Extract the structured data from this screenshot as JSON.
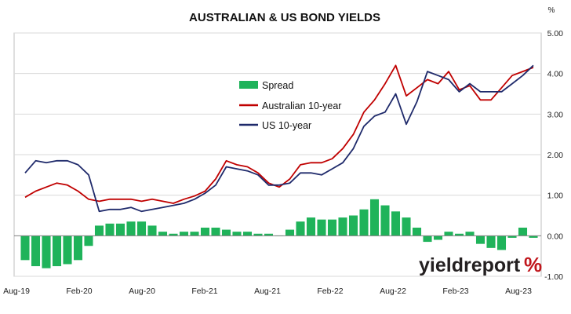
{
  "chart_data": {
    "type": "line",
    "title": "AUSTRALIAN & US BOND YIELDS",
    "y_unit_label": "%",
    "ylim": [
      -1.0,
      5.0
    ],
    "y_ticks": [
      "5.00",
      "4.00",
      "3.00",
      "2.00",
      "1.00",
      "0.00",
      "-1.00"
    ],
    "x_tick_labels": [
      "Aug-19",
      "Feb-20",
      "Aug-20",
      "Feb-21",
      "Aug-21",
      "Feb-22",
      "Aug-22",
      "Feb-23",
      "Aug-23"
    ],
    "x_dates": [
      "2019-08",
      "2019-09",
      "2019-10",
      "2019-11",
      "2019-12",
      "2020-01",
      "2020-02",
      "2020-03",
      "2020-04",
      "2020-05",
      "2020-06",
      "2020-07",
      "2020-08",
      "2020-09",
      "2020-10",
      "2020-11",
      "2020-12",
      "2021-01",
      "2021-02",
      "2021-03",
      "2021-04",
      "2021-05",
      "2021-06",
      "2021-07",
      "2021-08",
      "2021-09",
      "2021-10",
      "2021-11",
      "2021-12",
      "2022-01",
      "2022-02",
      "2022-03",
      "2022-04",
      "2022-05",
      "2022-06",
      "2022-07",
      "2022-08",
      "2022-09",
      "2022-10",
      "2022-11",
      "2022-12",
      "2023-01",
      "2023-02",
      "2023-03",
      "2023-04",
      "2023-05",
      "2023-06",
      "2023-07",
      "2023-08"
    ],
    "series": [
      {
        "name": "Spread",
        "type": "bar",
        "color": "#1fb35a",
        "values": [
          -0.6,
          -0.75,
          -0.8,
          -0.75,
          -0.7,
          -0.6,
          -0.25,
          0.25,
          0.3,
          0.3,
          0.35,
          0.35,
          0.25,
          0.1,
          0.05,
          0.1,
          0.1,
          0.2,
          0.2,
          0.15,
          0.1,
          0.1,
          0.05,
          0.05,
          0.0,
          0.15,
          0.35,
          0.45,
          0.4,
          0.4,
          0.45,
          0.5,
          0.65,
          0.9,
          0.75,
          0.6,
          0.45,
          0.2,
          -0.15,
          -0.1,
          0.1,
          0.05,
          0.1,
          -0.2,
          -0.3,
          -0.35,
          -0.05,
          0.2,
          -0.05
        ]
      },
      {
        "name": "Australian 10-year",
        "type": "line",
        "color": "#c00000",
        "values": [
          0.95,
          1.1,
          1.2,
          1.3,
          1.25,
          1.1,
          0.9,
          0.85,
          0.9,
          0.9,
          0.9,
          0.85,
          0.9,
          0.85,
          0.8,
          0.9,
          0.98,
          1.1,
          1.4,
          1.85,
          1.75,
          1.7,
          1.55,
          1.3,
          1.2,
          1.4,
          1.75,
          1.8,
          1.8,
          1.9,
          2.15,
          2.5,
          3.05,
          3.35,
          3.75,
          4.2,
          3.45,
          3.65,
          3.85,
          3.75,
          4.05,
          3.6,
          3.7,
          3.35,
          3.35,
          3.65,
          3.95,
          4.05,
          4.15
        ]
      },
      {
        "name": "US 10-year",
        "type": "line",
        "color": "#1f2a6b",
        "values": [
          1.55,
          1.85,
          1.8,
          1.85,
          1.85,
          1.75,
          1.5,
          0.6,
          0.65,
          0.65,
          0.7,
          0.6,
          0.65,
          0.7,
          0.75,
          0.8,
          0.9,
          1.05,
          1.25,
          1.7,
          1.65,
          1.6,
          1.5,
          1.25,
          1.25,
          1.3,
          1.55,
          1.55,
          1.5,
          1.65,
          1.8,
          2.15,
          2.7,
          2.95,
          3.05,
          3.5,
          2.75,
          3.3,
          4.05,
          3.95,
          3.85,
          3.55,
          3.75,
          3.55,
          3.55,
          3.55,
          3.75,
          3.95,
          4.2
        ]
      }
    ],
    "legend_position": "middle-left",
    "grid": "horizontal"
  },
  "watermark": {
    "word": "yieldreport",
    "symbol": "%"
  },
  "colors": {
    "spread": "#1fb35a",
    "australian": "#c00000",
    "us": "#1f2a6b",
    "grid": "#d9d9d9",
    "logo_red": "#c0151b"
  }
}
